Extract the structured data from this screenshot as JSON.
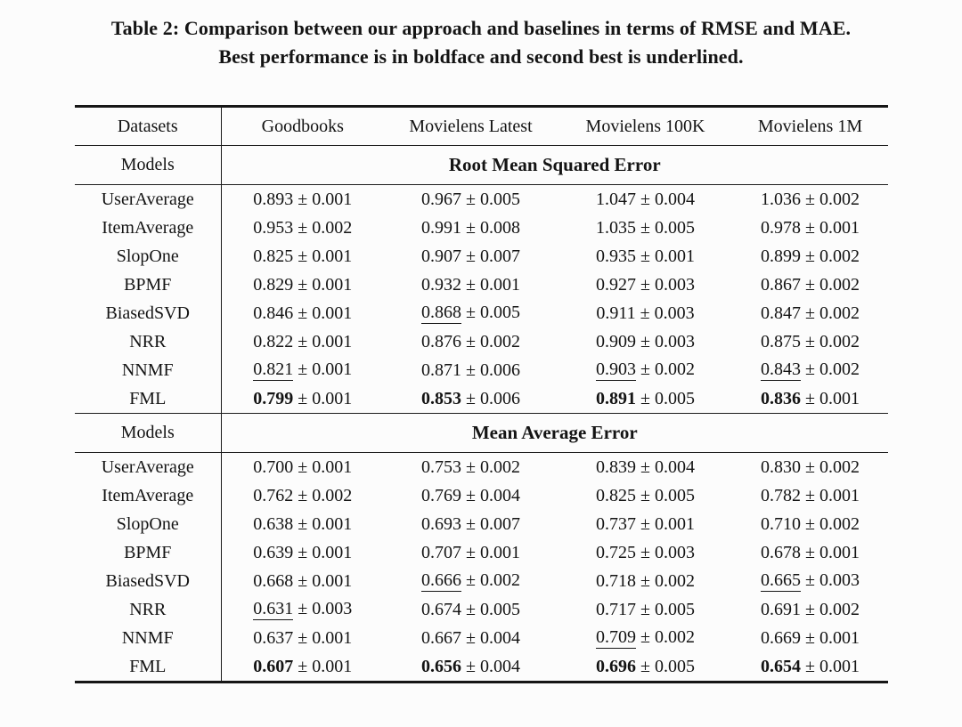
{
  "caption": {
    "line1": "Table 2: Comparison between our approach and baselines in terms of RMSE and MAE.",
    "line2": "Best performance is in boldface and second best is underlined."
  },
  "table": {
    "datasets_label": "Datasets",
    "models_label": "Models",
    "pm_symbol": "±",
    "dataset_columns": [
      "Goodbooks",
      "Movielens Latest",
      "Movielens 100K",
      "Movielens 1M"
    ],
    "sections": [
      {
        "metric": "Root Mean Squared Error",
        "rows": [
          {
            "model": "UserAverage",
            "bold": false,
            "cells": [
              {
                "value": "0.893",
                "std": "0.001",
                "emphasis": "none"
              },
              {
                "value": "0.967",
                "std": "0.005",
                "emphasis": "none"
              },
              {
                "value": "1.047",
                "std": "0.004",
                "emphasis": "none"
              },
              {
                "value": "1.036",
                "std": "0.002",
                "emphasis": "none"
              }
            ]
          },
          {
            "model": "ItemAverage",
            "bold": false,
            "cells": [
              {
                "value": "0.953",
                "std": "0.002",
                "emphasis": "none"
              },
              {
                "value": "0.991",
                "std": "0.008",
                "emphasis": "none"
              },
              {
                "value": "1.035",
                "std": "0.005",
                "emphasis": "none"
              },
              {
                "value": "0.978",
                "std": "0.001",
                "emphasis": "none"
              }
            ]
          },
          {
            "model": "SlopOne",
            "bold": false,
            "cells": [
              {
                "value": "0.825",
                "std": "0.001",
                "emphasis": "none"
              },
              {
                "value": "0.907",
                "std": "0.007",
                "emphasis": "none"
              },
              {
                "value": "0.935",
                "std": "0.001",
                "emphasis": "none"
              },
              {
                "value": "0.899",
                "std": "0.002",
                "emphasis": "none"
              }
            ]
          },
          {
            "model": "BPMF",
            "bold": false,
            "cells": [
              {
                "value": "0.829",
                "std": "0.001",
                "emphasis": "none"
              },
              {
                "value": "0.932",
                "std": "0.001",
                "emphasis": "none"
              },
              {
                "value": "0.927",
                "std": "0.003",
                "emphasis": "none"
              },
              {
                "value": "0.867",
                "std": "0.002",
                "emphasis": "none"
              }
            ]
          },
          {
            "model": "BiasedSVD",
            "bold": false,
            "cells": [
              {
                "value": "0.846",
                "std": "0.001",
                "emphasis": "none"
              },
              {
                "value": "0.868",
                "std": "0.005",
                "emphasis": "underline"
              },
              {
                "value": "0.911",
                "std": "0.003",
                "emphasis": "none"
              },
              {
                "value": "0.847",
                "std": "0.002",
                "emphasis": "none"
              }
            ]
          },
          {
            "model": "NRR",
            "bold": false,
            "cells": [
              {
                "value": "0.822",
                "std": "0.001",
                "emphasis": "none"
              },
              {
                "value": "0.876",
                "std": "0.002",
                "emphasis": "none"
              },
              {
                "value": "0.909",
                "std": "0.003",
                "emphasis": "none"
              },
              {
                "value": "0.875",
                "std": "0.002",
                "emphasis": "none"
              }
            ]
          },
          {
            "model": "NNMF",
            "bold": false,
            "cells": [
              {
                "value": "0.821",
                "std": "0.001",
                "emphasis": "underline"
              },
              {
                "value": "0.871",
                "std": "0.006",
                "emphasis": "none"
              },
              {
                "value": "0.903",
                "std": "0.002",
                "emphasis": "underline"
              },
              {
                "value": "0.843",
                "std": "0.002",
                "emphasis": "underline"
              }
            ]
          },
          {
            "model": "FML",
            "bold": true,
            "cells": [
              {
                "value": "0.799",
                "std": "0.001",
                "emphasis": "bold"
              },
              {
                "value": "0.853",
                "std": "0.006",
                "emphasis": "bold"
              },
              {
                "value": "0.891",
                "std": "0.005",
                "emphasis": "bold"
              },
              {
                "value": "0.836",
                "std": "0.001",
                "emphasis": "bold"
              }
            ]
          }
        ]
      },
      {
        "metric": "Mean Average Error",
        "rows": [
          {
            "model": "UserAverage",
            "bold": false,
            "cells": [
              {
                "value": "0.700",
                "std": "0.001",
                "emphasis": "none"
              },
              {
                "value": "0.753",
                "std": "0.002",
                "emphasis": "none"
              },
              {
                "value": "0.839",
                "std": "0.004",
                "emphasis": "none"
              },
              {
                "value": "0.830",
                "std": "0.002",
                "emphasis": "none"
              }
            ]
          },
          {
            "model": "ItemAverage",
            "bold": false,
            "cells": [
              {
                "value": "0.762",
                "std": "0.002",
                "emphasis": "none"
              },
              {
                "value": "0.769",
                "std": "0.004",
                "emphasis": "none"
              },
              {
                "value": "0.825",
                "std": "0.005",
                "emphasis": "none"
              },
              {
                "value": "0.782",
                "std": "0.001",
                "emphasis": "none"
              }
            ]
          },
          {
            "model": "SlopOne",
            "bold": false,
            "cells": [
              {
                "value": "0.638",
                "std": "0.001",
                "emphasis": "none"
              },
              {
                "value": "0.693",
                "std": "0.007",
                "emphasis": "none"
              },
              {
                "value": "0.737",
                "std": "0.001",
                "emphasis": "none"
              },
              {
                "value": "0.710",
                "std": "0.002",
                "emphasis": "none"
              }
            ]
          },
          {
            "model": "BPMF",
            "bold": false,
            "cells": [
              {
                "value": "0.639",
                "std": "0.001",
                "emphasis": "none"
              },
              {
                "value": "0.707",
                "std": "0.001",
                "emphasis": "none"
              },
              {
                "value": "0.725",
                "std": "0.003",
                "emphasis": "none"
              },
              {
                "value": "0.678",
                "std": "0.001",
                "emphasis": "none"
              }
            ]
          },
          {
            "model": "BiasedSVD",
            "bold": false,
            "cells": [
              {
                "value": "0.668",
                "std": "0.001",
                "emphasis": "none"
              },
              {
                "value": "0.666",
                "std": "0.002",
                "emphasis": "underline"
              },
              {
                "value": "0.718",
                "std": "0.002",
                "emphasis": "none"
              },
              {
                "value": "0.665",
                "std": "0.003",
                "emphasis": "underline"
              }
            ]
          },
          {
            "model": "NRR",
            "bold": false,
            "cells": [
              {
                "value": "0.631",
                "std": "0.003",
                "emphasis": "underline"
              },
              {
                "value": "0.674",
                "std": "0.005",
                "emphasis": "none"
              },
              {
                "value": "0.717",
                "std": "0.005",
                "emphasis": "none"
              },
              {
                "value": "0.691",
                "std": "0.002",
                "emphasis": "none"
              }
            ]
          },
          {
            "model": "NNMF",
            "bold": false,
            "cells": [
              {
                "value": "0.637",
                "std": "0.001",
                "emphasis": "none"
              },
              {
                "value": "0.667",
                "std": "0.004",
                "emphasis": "none"
              },
              {
                "value": "0.709",
                "std": "0.002",
                "emphasis": "underline"
              },
              {
                "value": "0.669",
                "std": "0.001",
                "emphasis": "none"
              }
            ]
          },
          {
            "model": "FML",
            "bold": true,
            "cells": [
              {
                "value": "0.607",
                "std": "0.001",
                "emphasis": "bold"
              },
              {
                "value": "0.656",
                "std": "0.004",
                "emphasis": "bold"
              },
              {
                "value": "0.696",
                "std": "0.005",
                "emphasis": "bold"
              },
              {
                "value": "0.654",
                "std": "0.001",
                "emphasis": "bold"
              }
            ]
          }
        ]
      }
    ]
  }
}
